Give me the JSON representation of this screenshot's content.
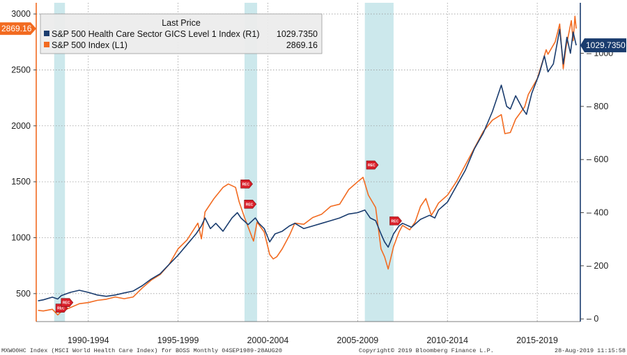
{
  "chart_data": {
    "type": "line",
    "legend": {
      "title": "Last Price",
      "placement": "top-left",
      "entries": [
        {
          "label": "S&P 500 Health Care Sector GICS Level 1 Index  (R1)",
          "value": "1029.7350"
        },
        {
          "label": "S&P 500 Index  (L1)",
          "value": "2869.16"
        }
      ]
    },
    "x_ticks": [
      "1990-1994",
      "1995-1999",
      "2000-2004",
      "2005-2009",
      "2010-2014",
      "2015-2019"
    ],
    "y_left": {
      "ticks": [
        "500",
        "1000",
        "1500",
        "2000",
        "2500",
        "3000"
      ],
      "range": [
        250,
        3100
      ]
    },
    "y_right": {
      "ticks": [
        "0",
        "200",
        "400",
        "600",
        "800",
        "1000"
      ],
      "range": [
        -10,
        1190
      ]
    },
    "recession_bands": [
      {
        "start": 1990.6,
        "end": 1991.2
      },
      {
        "start": 2001.2,
        "end": 2001.9
      },
      {
        "start": 2007.9,
        "end": 2009.5
      }
    ],
    "rec_label": "REC",
    "grid": true,
    "last_value_tags": {
      "left": "2869.16",
      "right": "1029.7350"
    },
    "colors": {
      "sp500": "#f26b21",
      "healthcare": "#1a3c6e",
      "recession": "#cce8ec",
      "left_axis": "#f26b21",
      "right_axis": "#1a3c6e",
      "rec_marker": "#d9202a"
    },
    "series": [
      {
        "name": "S&P 500 Index  (L1)",
        "axis": "left",
        "points": [
          [
            1989.7,
            350
          ],
          [
            1990.0,
            345
          ],
          [
            1990.5,
            360
          ],
          [
            1990.8,
            310
          ],
          [
            1991.0,
            340
          ],
          [
            1991.5,
            375
          ],
          [
            1992.0,
            410
          ],
          [
            1992.5,
            420
          ],
          [
            1993.0,
            440
          ],
          [
            1993.5,
            450
          ],
          [
            1994.0,
            470
          ],
          [
            1994.5,
            455
          ],
          [
            1995.0,
            470
          ],
          [
            1995.5,
            550
          ],
          [
            1996.0,
            620
          ],
          [
            1996.5,
            670
          ],
          [
            1997.0,
            760
          ],
          [
            1997.5,
            900
          ],
          [
            1998.0,
            980
          ],
          [
            1998.6,
            1130
          ],
          [
            1998.8,
            990
          ],
          [
            1999.0,
            1230
          ],
          [
            1999.5,
            1350
          ],
          [
            2000.0,
            1450
          ],
          [
            2000.3,
            1480
          ],
          [
            2000.7,
            1450
          ],
          [
            2000.9,
            1320
          ],
          [
            2001.2,
            1180
          ],
          [
            2001.7,
            970
          ],
          [
            2001.9,
            1140
          ],
          [
            2002.3,
            1050
          ],
          [
            2002.6,
            850
          ],
          [
            2002.8,
            810
          ],
          [
            2003.0,
            830
          ],
          [
            2003.3,
            900
          ],
          [
            2003.7,
            1020
          ],
          [
            2004.0,
            1130
          ],
          [
            2004.5,
            1120
          ],
          [
            2005.0,
            1180
          ],
          [
            2005.5,
            1210
          ],
          [
            2006.0,
            1280
          ],
          [
            2006.5,
            1300
          ],
          [
            2007.0,
            1430
          ],
          [
            2007.5,
            1500
          ],
          [
            2007.8,
            1540
          ],
          [
            2008.1,
            1380
          ],
          [
            2008.5,
            1270
          ],
          [
            2008.8,
            900
          ],
          [
            2009.0,
            830
          ],
          [
            2009.2,
            720
          ],
          [
            2009.5,
            920
          ],
          [
            2009.8,
            1050
          ],
          [
            2010.0,
            1110
          ],
          [
            2010.4,
            1070
          ],
          [
            2010.7,
            1140
          ],
          [
            2011.0,
            1280
          ],
          [
            2011.3,
            1350
          ],
          [
            2011.6,
            1200
          ],
          [
            2011.8,
            1250
          ],
          [
            2012.0,
            1310
          ],
          [
            2012.5,
            1380
          ],
          [
            2013.0,
            1500
          ],
          [
            2013.5,
            1650
          ],
          [
            2014.0,
            1800
          ],
          [
            2014.5,
            1950
          ],
          [
            2015.0,
            2050
          ],
          [
            2015.5,
            2100
          ],
          [
            2015.7,
            1930
          ],
          [
            2016.0,
            1940
          ],
          [
            2016.3,
            2060
          ],
          [
            2016.8,
            2170
          ],
          [
            2017.0,
            2280
          ],
          [
            2017.5,
            2420
          ],
          [
            2018.0,
            2680
          ],
          [
            2018.1,
            2640
          ],
          [
            2018.5,
            2750
          ],
          [
            2018.75,
            2910
          ],
          [
            2018.95,
            2510
          ],
          [
            2019.1,
            2700
          ],
          [
            2019.4,
            2940
          ],
          [
            2019.5,
            2760
          ],
          [
            2019.6,
            2980
          ],
          [
            2019.67,
            2869
          ]
        ]
      },
      {
        "name": "S&P 500 Health Care Sector GICS Level 1 Index  (R1)",
        "axis": "right",
        "points": [
          [
            1989.7,
            68
          ],
          [
            1990.0,
            72
          ],
          [
            1990.5,
            82
          ],
          [
            1990.8,
            75
          ],
          [
            1991.0,
            88
          ],
          [
            1991.5,
            100
          ],
          [
            1992.0,
            108
          ],
          [
            1992.5,
            100
          ],
          [
            1993.0,
            90
          ],
          [
            1993.5,
            85
          ],
          [
            1994.0,
            90
          ],
          [
            1994.5,
            98
          ],
          [
            1995.0,
            105
          ],
          [
            1995.5,
            125
          ],
          [
            1996.0,
            150
          ],
          [
            1996.5,
            170
          ],
          [
            1997.0,
            205
          ],
          [
            1997.5,
            240
          ],
          [
            1998.0,
            280
          ],
          [
            1998.5,
            320
          ],
          [
            1998.8,
            350
          ],
          [
            1999.0,
            380
          ],
          [
            1999.3,
            340
          ],
          [
            1999.6,
            360
          ],
          [
            2000.0,
            330
          ],
          [
            2000.5,
            380
          ],
          [
            2000.8,
            400
          ],
          [
            2001.0,
            380
          ],
          [
            2001.4,
            355
          ],
          [
            2001.8,
            380
          ],
          [
            2002.0,
            360
          ],
          [
            2002.3,
            340
          ],
          [
            2002.6,
            290
          ],
          [
            2002.9,
            320
          ],
          [
            2003.3,
            330
          ],
          [
            2003.7,
            350
          ],
          [
            2004.0,
            360
          ],
          [
            2004.5,
            340
          ],
          [
            2005.0,
            350
          ],
          [
            2005.5,
            360
          ],
          [
            2006.0,
            370
          ],
          [
            2006.5,
            380
          ],
          [
            2007.0,
            395
          ],
          [
            2007.5,
            400
          ],
          [
            2007.9,
            410
          ],
          [
            2008.2,
            380
          ],
          [
            2008.5,
            370
          ],
          [
            2008.8,
            320
          ],
          [
            2009.0,
            290
          ],
          [
            2009.2,
            270
          ],
          [
            2009.5,
            320
          ],
          [
            2009.8,
            350
          ],
          [
            2010.0,
            360
          ],
          [
            2010.5,
            345
          ],
          [
            2011.0,
            375
          ],
          [
            2011.5,
            390
          ],
          [
            2011.8,
            380
          ],
          [
            2012.0,
            410
          ],
          [
            2012.5,
            440
          ],
          [
            2013.0,
            500
          ],
          [
            2013.5,
            560
          ],
          [
            2014.0,
            640
          ],
          [
            2014.5,
            700
          ],
          [
            2015.0,
            780
          ],
          [
            2015.5,
            880
          ],
          [
            2015.8,
            800
          ],
          [
            2016.0,
            790
          ],
          [
            2016.3,
            840
          ],
          [
            2016.7,
            790
          ],
          [
            2016.9,
            770
          ],
          [
            2017.2,
            850
          ],
          [
            2017.6,
            920
          ],
          [
            2017.9,
            990
          ],
          [
            2018.1,
            930
          ],
          [
            2018.4,
            960
          ],
          [
            2018.75,
            1090
          ],
          [
            2018.95,
            960
          ],
          [
            2019.15,
            1060
          ],
          [
            2019.35,
            1000
          ],
          [
            2019.5,
            1080
          ],
          [
            2019.67,
            1030
          ]
        ]
      }
    ]
  },
  "footer": {
    "left": "MXWO0HC Index (MSCI World Health Care Index) for BOSS  Monthly 04SEP1989-28AUG20",
    "center": "Copyright© 2019 Bloomberg Finance L.P.",
    "right": "28-Aug-2019 11:15:58"
  }
}
